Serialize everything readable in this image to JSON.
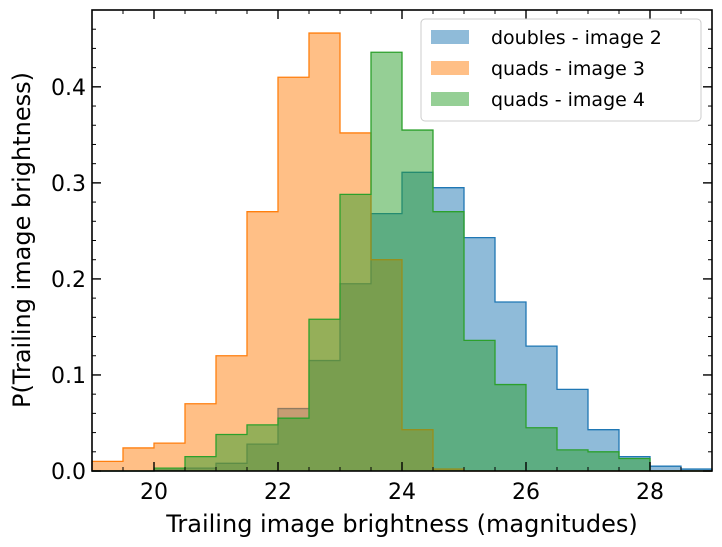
{
  "chart_data": {
    "type": "histogram",
    "xlabel": "Trailing image brightness (magnitudes)",
    "ylabel": "P(Trailing image brightness)",
    "xlim": [
      19.0,
      29.0
    ],
    "ylim": [
      0.0,
      0.48
    ],
    "xticks": [
      20,
      22,
      24,
      26,
      28
    ],
    "xtick_labels": [
      "20",
      "22",
      "24",
      "26",
      "28"
    ],
    "yticks": [
      0.0,
      0.1,
      0.2,
      0.3,
      0.4
    ],
    "ytick_labels": [
      "0.0",
      "0.1",
      "0.2",
      "0.3",
      "0.4"
    ],
    "grid": false,
    "legend_position": "top-right",
    "bin_edges": [
      19.0,
      19.5,
      20.0,
      20.5,
      21.0,
      21.5,
      22.0,
      22.5,
      23.0,
      23.5,
      24.0,
      24.5,
      25.0,
      25.5,
      26.0,
      26.5,
      27.0,
      27.5,
      28.0,
      28.5,
      29.0
    ],
    "series": [
      {
        "name": "doubles - image 2",
        "color": "#1f77b4",
        "values": [
          0.0,
          0.0,
          0.001,
          0.003,
          0.008,
          0.028,
          0.065,
          0.115,
          0.195,
          0.268,
          0.311,
          0.295,
          0.243,
          0.176,
          0.13,
          0.085,
          0.043,
          0.015,
          0.005,
          0.002
        ]
      },
      {
        "name": "quads - image 3",
        "color": "#ff7f0e",
        "values": [
          0.01,
          0.024,
          0.029,
          0.07,
          0.12,
          0.27,
          0.41,
          0.456,
          0.352,
          0.22,
          0.043,
          0.002,
          0.0,
          0.0,
          0.0,
          0.0,
          0.0,
          0.0,
          0.0,
          0.0
        ]
      },
      {
        "name": "quads - image 4",
        "color": "#2ca02c",
        "values": [
          0.0,
          0.0,
          0.003,
          0.015,
          0.038,
          0.048,
          0.055,
          0.158,
          0.288,
          0.436,
          0.355,
          0.27,
          0.136,
          0.09,
          0.045,
          0.022,
          0.02,
          0.013,
          0.0,
          0.0
        ]
      }
    ]
  }
}
